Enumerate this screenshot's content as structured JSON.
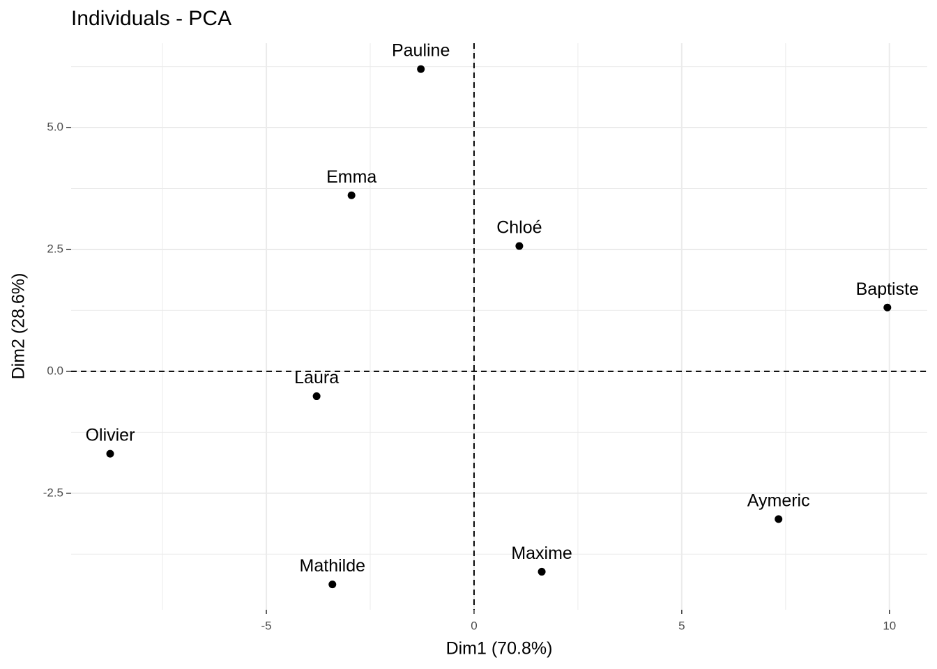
{
  "chart_data": {
    "type": "scatter",
    "title": "Individuals - PCA",
    "x_label": "Dim1 (70.8%)",
    "y_label": "Dim2 (28.6%)",
    "color": "#000000",
    "points": [
      {
        "label": "Pauline",
        "x": -1.28,
        "y": 6.2
      },
      {
        "label": "Emma",
        "x": -2.95,
        "y": 3.61
      },
      {
        "label": "Chloé",
        "x": 1.09,
        "y": 2.57
      },
      {
        "label": "Baptiste",
        "x": 9.95,
        "y": 1.31
      },
      {
        "label": "Laura",
        "x": -3.79,
        "y": -0.51
      },
      {
        "label": "Olivier",
        "x": -8.76,
        "y": -1.69
      },
      {
        "label": "Aymeric",
        "x": 7.33,
        "y": -3.03
      },
      {
        "label": "Maxime",
        "x": 1.63,
        "y": -4.11
      },
      {
        "label": "Mathilde",
        "x": -3.41,
        "y": -4.37
      }
    ],
    "xlim": [
      -9.7,
      10.91
    ],
    "ylim": [
      -4.89,
      6.73
    ],
    "xticks": [
      -5,
      0,
      5,
      10
    ],
    "yticks": [
      -2.5,
      {
        "value": 0,
        "label": "0.0"
      },
      2.5,
      {
        "value": 5,
        "label": "5.0"
      }
    ],
    "reference_lines": {
      "x": 0,
      "y": 0
    },
    "grid": true
  }
}
